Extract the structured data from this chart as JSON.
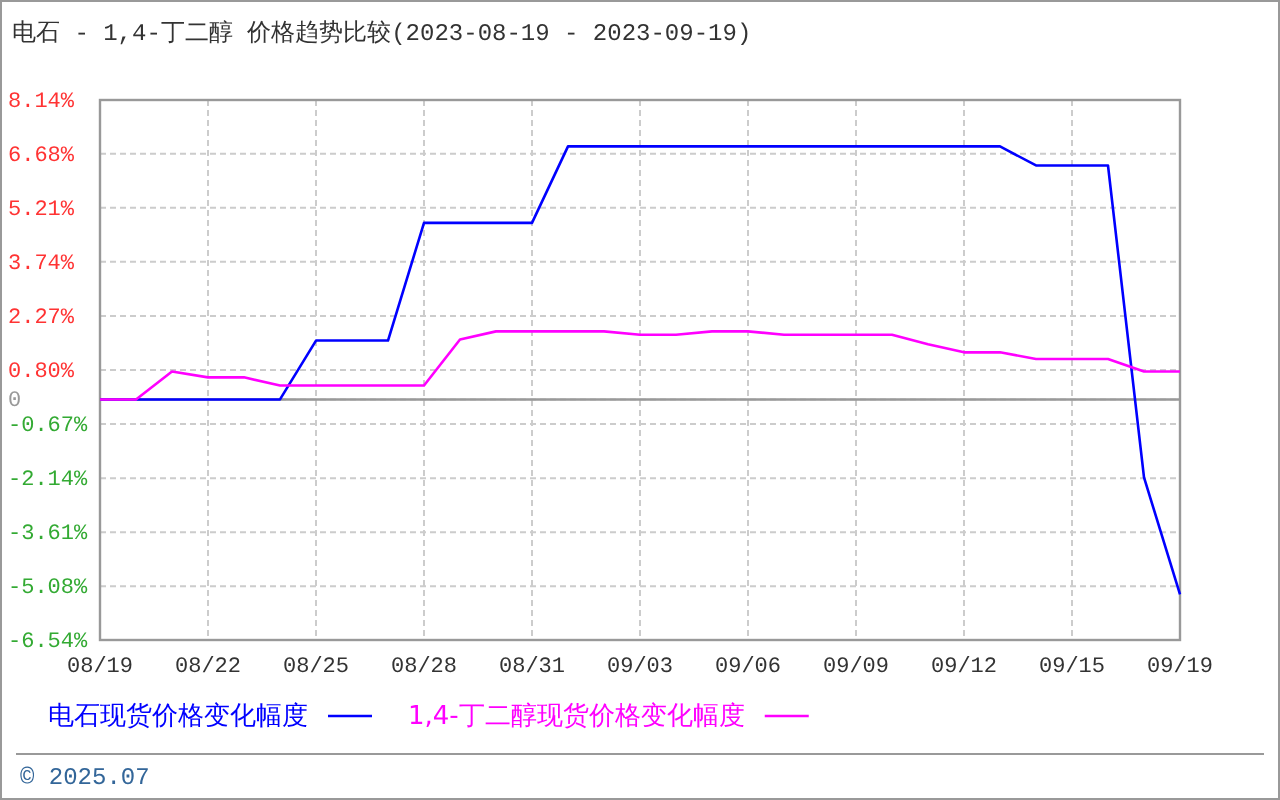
{
  "chart_data": {
    "type": "line",
    "title": "电石 - 1,4-丁二醇 价格趋势比较(2023-08-19 - 2023-09-19)",
    "categories": [
      "08/19",
      null,
      null,
      "08/22",
      null,
      null,
      "08/25",
      null,
      null,
      "08/28",
      null,
      null,
      "08/31",
      null,
      null,
      "09/03",
      null,
      null,
      "09/06",
      null,
      null,
      "09/09",
      null,
      null,
      "09/12",
      null,
      null,
      "09/15",
      null,
      null,
      "09/19"
    ],
    "series": [
      {
        "name": "电石现货价格变化幅度",
        "color": "#0000ff",
        "values": [
          0,
          0,
          0,
          0,
          0,
          0,
          1.6,
          1.6,
          1.6,
          4.8,
          4.8,
          4.8,
          4.8,
          6.88,
          6.88,
          6.88,
          6.88,
          6.88,
          6.88,
          6.88,
          6.88,
          6.88,
          6.88,
          6.88,
          6.88,
          6.88,
          6.36,
          6.36,
          6.36,
          -2.12,
          -5.3
        ]
      },
      {
        "name": "1,4-丁二醇现货价格变化幅度",
        "color": "#ff00ff",
        "values": [
          0,
          0,
          0.76,
          0.6,
          0.6,
          0.38,
          0.38,
          0.38,
          0.38,
          0.38,
          1.63,
          1.85,
          1.85,
          1.85,
          1.85,
          1.76,
          1.76,
          1.85,
          1.85,
          1.76,
          1.76,
          1.76,
          1.76,
          1.5,
          1.28,
          1.28,
          1.1,
          1.1,
          1.1,
          0.76,
          0.76
        ]
      }
    ],
    "ylim": [
      -6.54,
      8.14
    ],
    "yticks": [
      {
        "value": 8.14,
        "label": "8.14%"
      },
      {
        "value": 6.68,
        "label": "6.68%"
      },
      {
        "value": 5.21,
        "label": "5.21%"
      },
      {
        "value": 3.74,
        "label": "3.74%"
      },
      {
        "value": 2.27,
        "label": "2.27%"
      },
      {
        "value": 0.8,
        "label": "0.80%"
      },
      0,
      {
        "value": -0.67,
        "label": "-0.67%"
      },
      {
        "value": -2.14,
        "label": "-2.14%"
      },
      {
        "value": -3.61,
        "label": "-3.61%"
      },
      {
        "value": -5.08,
        "label": "-5.08%"
      },
      {
        "value": -6.54,
        "label": "-6.54%"
      }
    ],
    "ref_lines": [
      {
        "axis": "y",
        "value": 0,
        "color": "#999999"
      }
    ],
    "grid": true,
    "legend": "bottom",
    "marker": "none",
    "line_style": "solid",
    "annotations": [
      "© 2025.07"
    ]
  }
}
